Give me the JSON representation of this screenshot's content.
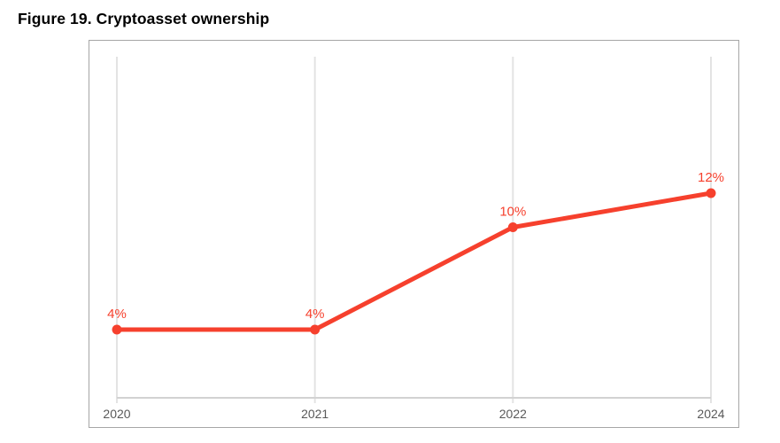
{
  "page": {
    "title": "Figure 19. Cryptoasset ownership"
  },
  "chart_data": {
    "type": "line",
    "title": "Figure 19. Cryptoasset ownership",
    "categories": [
      "2020",
      "2021",
      "2022",
      "2024"
    ],
    "series": [
      {
        "name": "Cryptoasset ownership",
        "values": [
          4,
          4,
          10,
          12
        ]
      }
    ],
    "point_labels": [
      "4%",
      "4%",
      "10%",
      "12%"
    ],
    "xlabel": "",
    "ylabel": "",
    "ylim": [
      0,
      20
    ],
    "grid": "vertical-only",
    "legend": "none",
    "colors": {
      "line": "#f6402d",
      "point": "#f6402d",
      "point_label": "#f6402d",
      "tick_label": "#595959",
      "gridline": "#e3e3e3",
      "axis_line": "#d2d2d2",
      "frame_border": "#a6a6a6",
      "title": "#000000"
    }
  }
}
